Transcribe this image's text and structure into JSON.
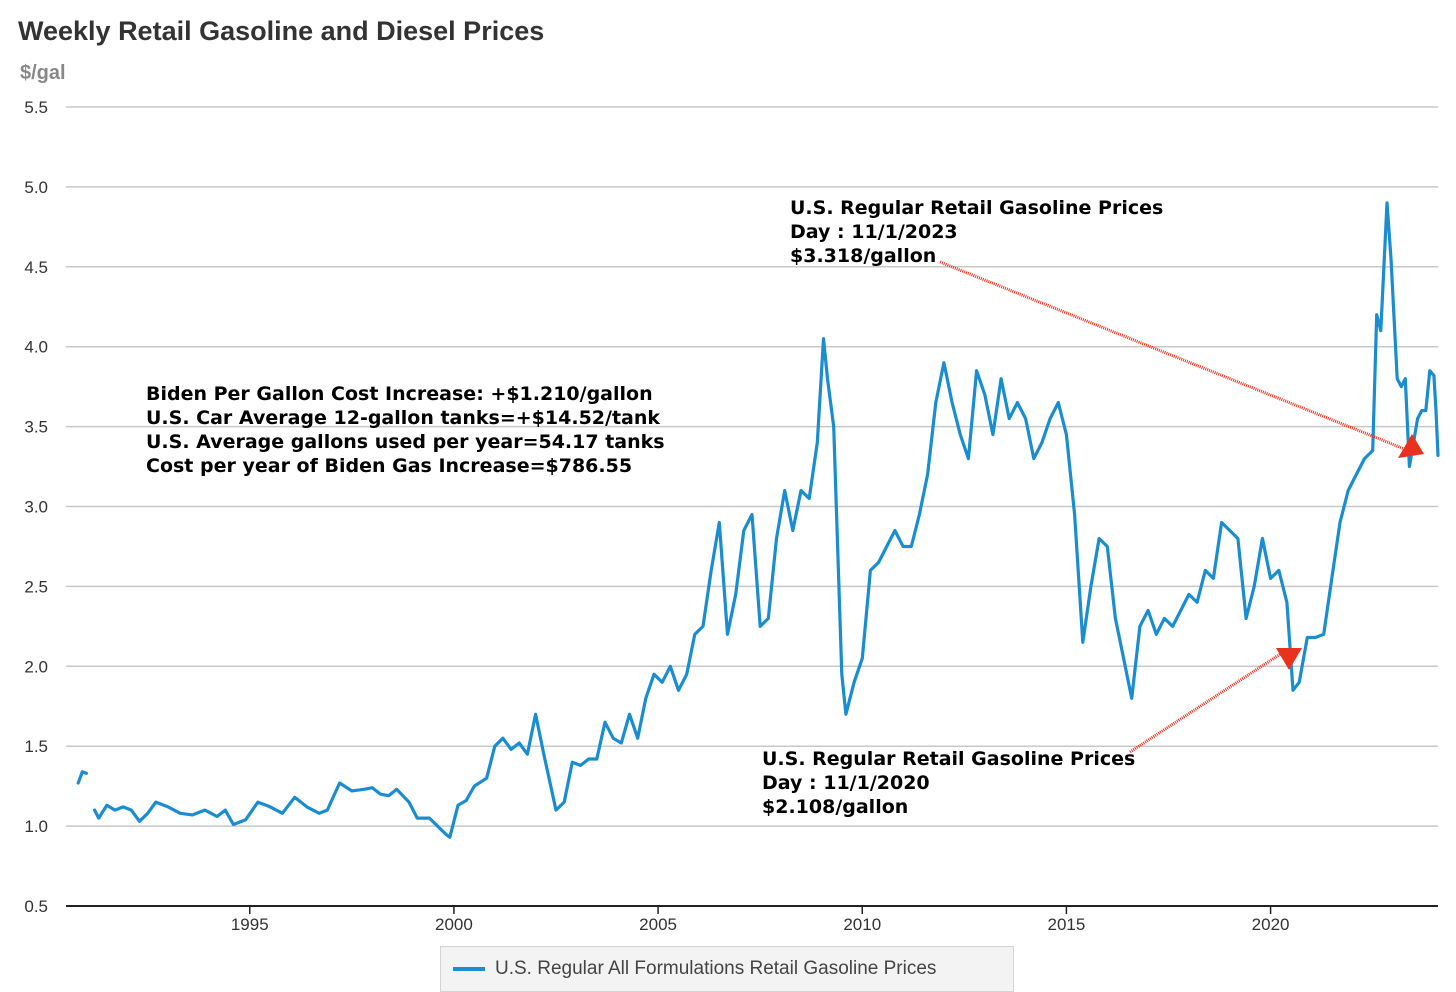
{
  "title": "Weekly Retail Gasoline and Diesel Prices",
  "unit_label": "$/gal",
  "colors": {
    "line": "#1a8dd0",
    "arrow": "#e8321e",
    "grid": "#c8c8c8",
    "axis": "#222222"
  },
  "annotations": {
    "top": [
      "U.S. Regular Retail Gasoline Prices",
      "Day : 11/1/2023",
      "$3.318/gallon"
    ],
    "bottom": [
      "U.S. Regular Retail Gasoline Prices",
      "Day : 11/1/2020",
      "$2.108/gallon"
    ],
    "left": [
      "Biden Per Gallon Cost Increase: +$1.210/gallon",
      "U.S. Car Average 12-gallon tanks=+$14.52/tank",
      "U.S. Average gallons used per year=54.17 tanks",
      "Cost per year of Biden Gas Increase=$786.55"
    ]
  },
  "chart_data": {
    "type": "line",
    "title": "Weekly Retail Gasoline and Diesel Prices",
    "ylabel": "$/gal",
    "xlabel": "",
    "ylim": [
      0.5,
      5.5
    ],
    "xlim": [
      1990.5,
      2024.1
    ],
    "yticks": [
      "0.5",
      "1.0",
      "1.5",
      "2.0",
      "2.5",
      "3.0",
      "3.5",
      "4.0",
      "4.5",
      "5.0",
      "5.5"
    ],
    "xticks": [
      "1995",
      "2000",
      "2005",
      "2010",
      "2015",
      "2020"
    ],
    "legend_position": "bottom",
    "grid": true,
    "series": [
      {
        "name": "U.S. Regular All Formulations Retail Gasoline Prices",
        "segments": [
          [
            [
              1990.8,
              1.27
            ],
            [
              1990.9,
              1.34
            ],
            [
              1991.0,
              1.33
            ]
          ],
          [
            [
              1991.2,
              1.1
            ],
            [
              1991.3,
              1.05
            ],
            [
              1991.5,
              1.13
            ],
            [
              1991.7,
              1.1
            ],
            [
              1991.9,
              1.12
            ],
            [
              1992.1,
              1.1
            ],
            [
              1992.3,
              1.03
            ],
            [
              1992.5,
              1.08
            ],
            [
              1992.7,
              1.15
            ],
            [
              1993.0,
              1.12
            ],
            [
              1993.3,
              1.08
            ],
            [
              1993.6,
              1.07
            ],
            [
              1993.9,
              1.1
            ],
            [
              1994.2,
              1.06
            ],
            [
              1994.4,
              1.1
            ],
            [
              1994.6,
              1.01
            ],
            [
              1994.9,
              1.04
            ],
            [
              1995.2,
              1.15
            ],
            [
              1995.5,
              1.12
            ],
            [
              1995.8,
              1.08
            ],
            [
              1996.1,
              1.18
            ],
            [
              1996.4,
              1.12
            ],
            [
              1996.7,
              1.08
            ],
            [
              1996.9,
              1.1
            ],
            [
              1997.2,
              1.27
            ],
            [
              1997.5,
              1.22
            ],
            [
              1997.8,
              1.23
            ],
            [
              1998.0,
              1.24
            ],
            [
              1998.2,
              1.2
            ],
            [
              1998.4,
              1.19
            ],
            [
              1998.6,
              1.23
            ],
            [
              1998.9,
              1.15
            ],
            [
              1999.1,
              1.05
            ],
            [
              1999.4,
              1.05
            ],
            [
              1999.6,
              1.0
            ],
            [
              1999.8,
              0.95
            ],
            [
              1999.9,
              0.93
            ],
            [
              2000.1,
              1.13
            ],
            [
              2000.3,
              1.16
            ],
            [
              2000.5,
              1.25
            ],
            [
              2000.8,
              1.3
            ],
            [
              2001.0,
              1.5
            ],
            [
              2001.2,
              1.55
            ],
            [
              2001.4,
              1.48
            ],
            [
              2001.6,
              1.52
            ],
            [
              2001.8,
              1.45
            ],
            [
              2002.0,
              1.7
            ],
            [
              2002.2,
              1.45
            ],
            [
              2002.5,
              1.1
            ],
            [
              2002.7,
              1.15
            ],
            [
              2002.9,
              1.4
            ],
            [
              2003.1,
              1.38
            ],
            [
              2003.3,
              1.42
            ],
            [
              2003.5,
              1.42
            ],
            [
              2003.7,
              1.65
            ],
            [
              2003.9,
              1.55
            ],
            [
              2004.1,
              1.52
            ],
            [
              2004.3,
              1.7
            ],
            [
              2004.5,
              1.55
            ],
            [
              2004.7,
              1.8
            ],
            [
              2004.9,
              1.95
            ],
            [
              2005.1,
              1.9
            ],
            [
              2005.3,
              2.0
            ],
            [
              2005.5,
              1.85
            ],
            [
              2005.7,
              1.95
            ],
            [
              2005.9,
              2.2
            ],
            [
              2006.1,
              2.25
            ],
            [
              2006.3,
              2.6
            ],
            [
              2006.5,
              2.9
            ],
            [
              2006.7,
              2.2
            ],
            [
              2006.9,
              2.45
            ],
            [
              2007.1,
              2.85
            ],
            [
              2007.3,
              2.95
            ],
            [
              2007.5,
              2.25
            ],
            [
              2007.7,
              2.3
            ],
            [
              2007.9,
              2.8
            ],
            [
              2008.1,
              3.1
            ],
            [
              2008.3,
              2.85
            ],
            [
              2008.5,
              3.1
            ],
            [
              2008.7,
              3.05
            ],
            [
              2008.9,
              3.4
            ],
            [
              2009.05,
              4.05
            ],
            [
              2009.15,
              3.8
            ],
            [
              2009.3,
              3.5
            ],
            [
              2009.5,
              1.95
            ],
            [
              2009.6,
              1.7
            ],
            [
              2009.8,
              1.9
            ],
            [
              2010.0,
              2.05
            ],
            [
              2010.2,
              2.6
            ],
            [
              2010.4,
              2.65
            ],
            [
              2010.6,
              2.75
            ],
            [
              2010.8,
              2.85
            ],
            [
              2011.0,
              2.75
            ],
            [
              2011.2,
              2.75
            ],
            [
              2011.4,
              2.95
            ],
            [
              2011.6,
              3.2
            ],
            [
              2011.8,
              3.65
            ],
            [
              2012.0,
              3.9
            ],
            [
              2012.2,
              3.65
            ],
            [
              2012.4,
              3.45
            ],
            [
              2012.6,
              3.3
            ],
            [
              2012.8,
              3.85
            ],
            [
              2013.0,
              3.7
            ],
            [
              2013.2,
              3.45
            ],
            [
              2013.4,
              3.8
            ],
            [
              2013.6,
              3.55
            ],
            [
              2013.8,
              3.65
            ],
            [
              2014.0,
              3.55
            ],
            [
              2014.2,
              3.3
            ],
            [
              2014.4,
              3.4
            ],
            [
              2014.6,
              3.55
            ],
            [
              2014.8,
              3.65
            ],
            [
              2015.0,
              3.45
            ],
            [
              2015.2,
              2.95
            ],
            [
              2015.4,
              2.15
            ],
            [
              2015.6,
              2.5
            ],
            [
              2015.8,
              2.8
            ],
            [
              2016.0,
              2.75
            ],
            [
              2016.2,
              2.3
            ],
            [
              2016.4,
              2.05
            ],
            [
              2016.6,
              1.8
            ],
            [
              2016.8,
              2.25
            ],
            [
              2017.0,
              2.35
            ],
            [
              2017.2,
              2.2
            ],
            [
              2017.4,
              2.3
            ],
            [
              2017.6,
              2.25
            ],
            [
              2017.8,
              2.35
            ],
            [
              2018.0,
              2.45
            ],
            [
              2018.2,
              2.4
            ],
            [
              2018.4,
              2.6
            ],
            [
              2018.6,
              2.55
            ],
            [
              2018.8,
              2.9
            ],
            [
              2019.0,
              2.85
            ],
            [
              2019.2,
              2.8
            ],
            [
              2019.4,
              2.3
            ],
            [
              2019.6,
              2.5
            ],
            [
              2019.8,
              2.8
            ],
            [
              2020.0,
              2.55
            ],
            [
              2020.2,
              2.6
            ],
            [
              2020.4,
              2.4
            ],
            [
              2020.55,
              1.85
            ],
            [
              2020.7,
              1.9
            ],
            [
              2020.9,
              2.18
            ],
            [
              2021.1,
              2.18
            ],
            [
              2021.3,
              2.2
            ],
            [
              2021.5,
              2.55
            ],
            [
              2021.7,
              2.9
            ],
            [
              2021.9,
              3.1
            ],
            [
              2022.1,
              3.2
            ],
            [
              2022.3,
              3.3
            ],
            [
              2022.5,
              3.35
            ],
            [
              2022.6,
              4.2
            ],
            [
              2022.7,
              4.1
            ],
            [
              2022.85,
              4.9
            ],
            [
              2022.95,
              4.55
            ],
            [
              2023.1,
              3.8
            ],
            [
              2023.2,
              3.75
            ],
            [
              2023.3,
              3.8
            ],
            [
              2023.4,
              3.25
            ],
            [
              2023.5,
              3.4
            ],
            [
              2023.6,
              3.55
            ],
            [
              2023.7,
              3.6
            ],
            [
              2023.8,
              3.6
            ],
            [
              2023.9,
              3.85
            ],
            [
              2024.0,
              3.82
            ],
            [
              2024.05,
              3.6
            ],
            [
              2024.1,
              3.32
            ]
          ]
        ]
      }
    ]
  }
}
